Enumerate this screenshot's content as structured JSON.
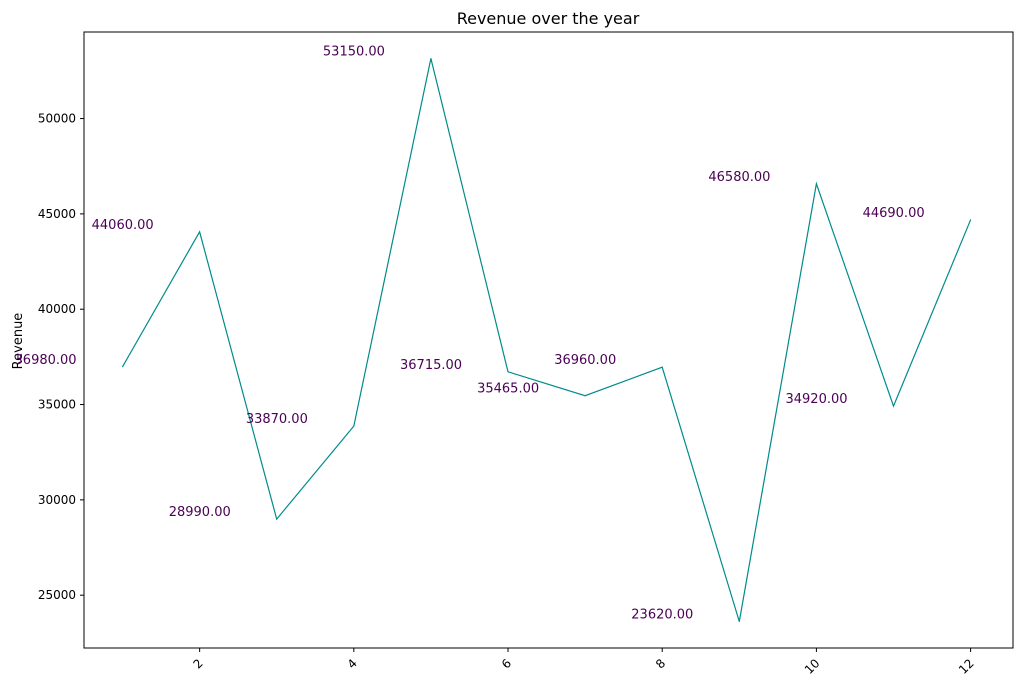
{
  "chart_data": {
    "type": "line",
    "title": "Revenue over the year",
    "xlabel": "",
    "ylabel": "Revenue",
    "x": [
      1,
      2,
      3,
      4,
      5,
      6,
      7,
      8,
      9,
      10,
      11,
      12
    ],
    "series": [
      {
        "values": [
          36980,
          44060,
          28990,
          33870,
          53150,
          36715,
          35465,
          36960,
          23620,
          46580,
          34920,
          44690
        ]
      }
    ],
    "data_labels": [
      "36980.00",
      "44060.00",
      "28990.00",
      "33870.00",
      "53150.00",
      "36715.00",
      "35465.00",
      "36960.00",
      "23620.00",
      "46580.00",
      "34920.00",
      "44690.00"
    ],
    "xticks": [
      2,
      4,
      6,
      8,
      10,
      12
    ],
    "yticks": [
      25000,
      30000,
      35000,
      40000,
      45000,
      50000
    ],
    "xlim": [
      0.5,
      12.55
    ],
    "ylim": [
      22230,
      54540
    ],
    "grid": false,
    "line_color": "#008b8b",
    "label_color": "#4b0055"
  }
}
